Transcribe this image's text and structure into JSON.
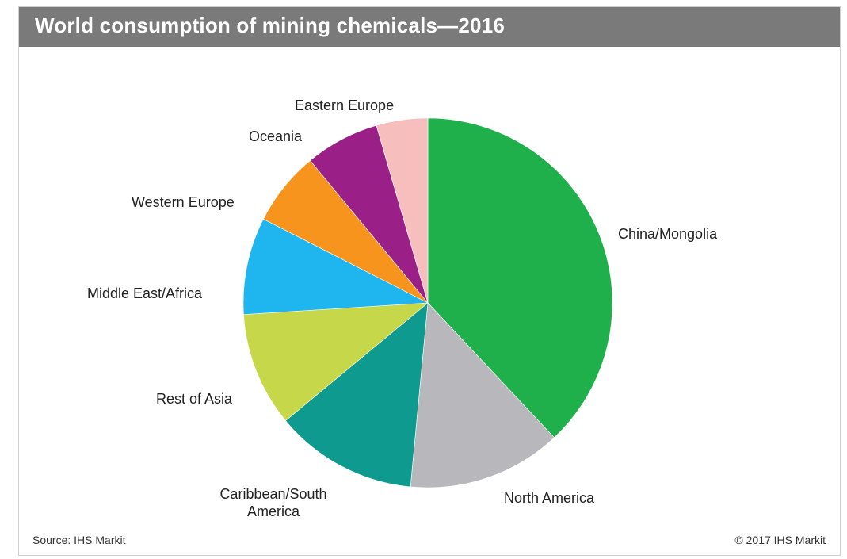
{
  "header": {
    "title": "World consumption of mining chemicals—2016"
  },
  "footer": {
    "source": "Source:  IHS Markit",
    "copyright": "© 2017  IHS  Markit"
  },
  "chart_data": {
    "type": "pie",
    "title": "World consumption of mining chemicals—2016",
    "unit": "percent share (estimated)",
    "start_angle_deg": 0,
    "direction": "clockwise",
    "slices": [
      {
        "label": "China/Mongolia",
        "value": 38.0,
        "color": "#20b04b"
      },
      {
        "label": "North America",
        "value": 13.5,
        "color": "#b8b8bc"
      },
      {
        "label": "Caribbean/South America",
        "value": 12.5,
        "color": "#0e9a8e"
      },
      {
        "label": "Rest of Asia",
        "value": 10.0,
        "color": "#c6d84a"
      },
      {
        "label": "Middle East/Africa",
        "value": 8.5,
        "color": "#1fb6f0"
      },
      {
        "label": "Western Europe",
        "value": 6.5,
        "color": "#f7941d"
      },
      {
        "label": "Oceania",
        "value": 6.5,
        "color": "#9a1f86"
      },
      {
        "label": "Eastern Europe",
        "value": 4.5,
        "color": "#f6bfbd"
      }
    ]
  }
}
